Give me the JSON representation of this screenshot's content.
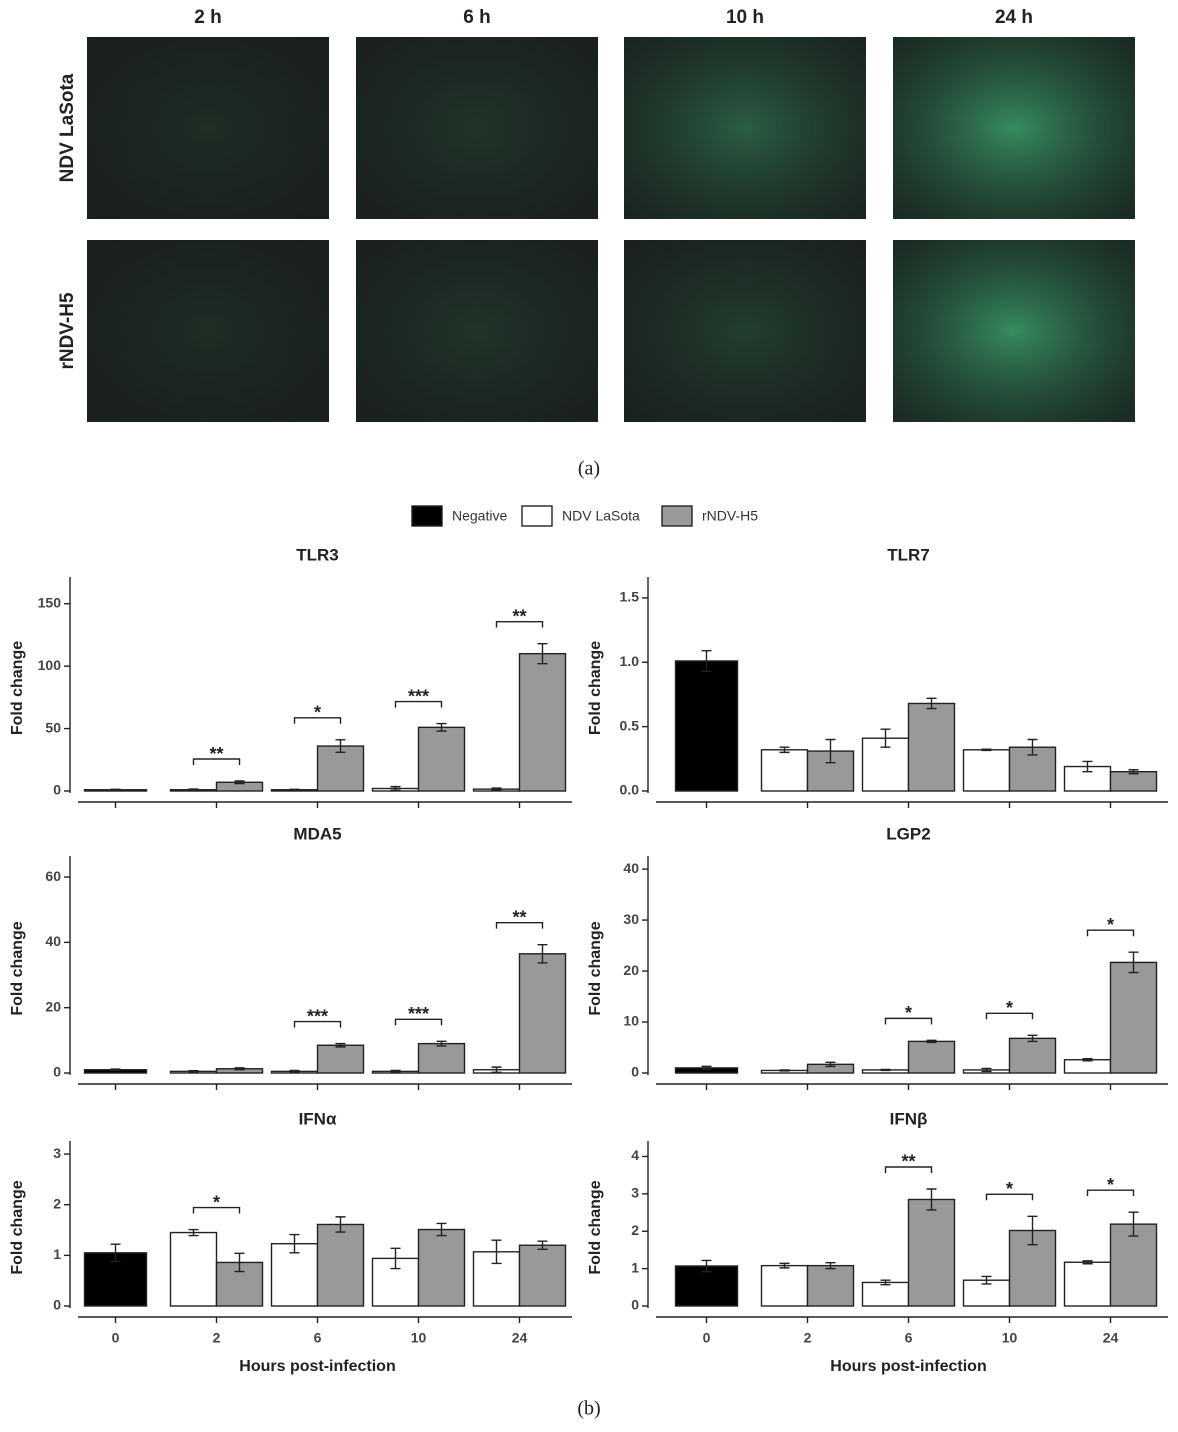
{
  "panel_a": {
    "columns": [
      "2 h",
      "6 h",
      "10 h",
      "24 h"
    ],
    "rows": [
      "NDV LaSota",
      "rNDV-H5"
    ],
    "caption": "(a)"
  },
  "panel_b_caption": "(b)",
  "legend": [
    {
      "name": "Negative",
      "color": "#000000"
    },
    {
      "name": "NDV LaSota",
      "color": "#ffffff"
    },
    {
      "name": "rNDV-H5",
      "color": "#999999"
    }
  ],
  "chart_data": [
    {
      "type": "bar",
      "title": "TLR3",
      "ylabel": "Fold change",
      "ylim": [
        0,
        165
      ],
      "yticks": [
        0,
        50,
        100,
        150
      ],
      "series": [
        {
          "values": [
            1,
            null,
            null,
            null,
            null
          ],
          "errors": [
            0.3,
            null,
            null,
            null,
            null
          ]
        },
        {
          "values": [
            null,
            1,
            1,
            2,
            1.5
          ],
          "errors": [
            null,
            0.5,
            0.3,
            1.5,
            0.8
          ]
        },
        {
          "values": [
            null,
            7,
            36,
            51,
            110
          ],
          "errors": [
            null,
            1,
            5,
            3,
            8
          ]
        }
      ],
      "significance": [
        null,
        "**",
        "*",
        "***",
        "**"
      ]
    },
    {
      "type": "bar",
      "title": "TLR7",
      "ylabel": "Fold change",
      "ylim": [
        0,
        1.6
      ],
      "yticks": [
        {
          "value": 0,
          "label": "0.0"
        },
        0.5,
        {
          "value": 1,
          "label": "1.0"
        },
        1.5
      ],
      "series": [
        {
          "values": [
            1.01,
            null,
            null,
            null,
            null
          ],
          "errors": [
            0.08,
            null,
            null,
            null,
            null
          ]
        },
        {
          "values": [
            null,
            0.32,
            0.41,
            0.32,
            0.19
          ],
          "errors": [
            null,
            0.02,
            0.07,
            0.005,
            0.04
          ]
        },
        {
          "values": [
            null,
            0.31,
            0.68,
            0.34,
            0.15
          ],
          "errors": [
            null,
            0.09,
            0.04,
            0.06,
            0.015
          ]
        }
      ],
      "significance": [
        null,
        null,
        null,
        null,
        null
      ]
    },
    {
      "type": "bar",
      "title": "MDA5",
      "ylabel": "Fold change",
      "ylim": [
        0,
        64
      ],
      "yticks": [
        0,
        20,
        40,
        60
      ],
      "series": [
        {
          "values": [
            1,
            null,
            null,
            null,
            null
          ],
          "errors": [
            0.2,
            null,
            null,
            null,
            null
          ]
        },
        {
          "values": [
            null,
            0.5,
            0.5,
            0.5,
            1
          ],
          "errors": [
            null,
            0.2,
            0.3,
            0.3,
            0.8
          ]
        },
        {
          "values": [
            null,
            1.3,
            8.5,
            9,
            36.5
          ],
          "errors": [
            null,
            0.3,
            0.5,
            0.7,
            2.8
          ]
        }
      ],
      "significance": [
        null,
        null,
        "***",
        "***",
        "**"
      ]
    },
    {
      "type": "bar",
      "title": "LGP2",
      "ylabel": "Fold change",
      "ylim": [
        0,
        41
      ],
      "yticks": [
        0,
        10,
        20,
        30,
        40
      ],
      "series": [
        {
          "values": [
            1,
            null,
            null,
            null,
            null
          ],
          "errors": [
            0.3,
            null,
            null,
            null,
            null
          ]
        },
        {
          "values": [
            null,
            0.5,
            0.6,
            0.6,
            2.6
          ],
          "errors": [
            null,
            0.1,
            0.1,
            0.3,
            0.2
          ]
        },
        {
          "values": [
            null,
            1.7,
            6.2,
            6.8,
            21.7
          ],
          "errors": [
            null,
            0.4,
            0.2,
            0.6,
            2
          ]
        }
      ],
      "significance": [
        null,
        null,
        "*",
        "*",
        "*"
      ]
    },
    {
      "type": "bar",
      "title": "IFNα",
      "ylabel": "Fold change",
      "xlabel": "Hours post-infection",
      "categories": [
        "0",
        "2",
        "6",
        "10",
        "24"
      ],
      "ylim": [
        0,
        3.1
      ],
      "yticks": [
        0,
        1,
        2,
        3
      ],
      "series": [
        {
          "values": [
            1.05,
            null,
            null,
            null,
            null
          ],
          "errors": [
            0.17,
            null,
            null,
            null,
            null
          ]
        },
        {
          "values": [
            null,
            1.45,
            1.23,
            0.94,
            1.07
          ],
          "errors": [
            null,
            0.06,
            0.18,
            0.2,
            0.23
          ]
        },
        {
          "values": [
            null,
            0.86,
            1.61,
            1.51,
            1.2
          ],
          "errors": [
            null,
            0.18,
            0.15,
            0.12,
            0.08
          ]
        }
      ],
      "significance": [
        null,
        "*",
        null,
        null,
        null
      ]
    },
    {
      "type": "bar",
      "title": "IFNβ",
      "ylabel": "Fold change",
      "xlabel": "Hours post-infection",
      "categories": [
        "0",
        "2",
        "6",
        "10",
        "24"
      ],
      "ylim": [
        0,
        4.2
      ],
      "yticks": [
        0,
        1,
        2,
        3,
        4
      ],
      "series": [
        {
          "values": [
            1.07,
            null,
            null,
            null,
            null
          ],
          "errors": [
            0.15,
            null,
            null,
            null,
            null
          ]
        },
        {
          "values": [
            null,
            1.08,
            0.63,
            0.69,
            1.17
          ],
          "errors": [
            null,
            0.06,
            0.06,
            0.1,
            0.04
          ]
        },
        {
          "values": [
            null,
            1.08,
            2.85,
            2.02,
            2.19
          ],
          "errors": [
            null,
            0.08,
            0.28,
            0.38,
            0.32
          ]
        }
      ],
      "significance": [
        null,
        null,
        "**",
        "*",
        "*"
      ]
    }
  ]
}
